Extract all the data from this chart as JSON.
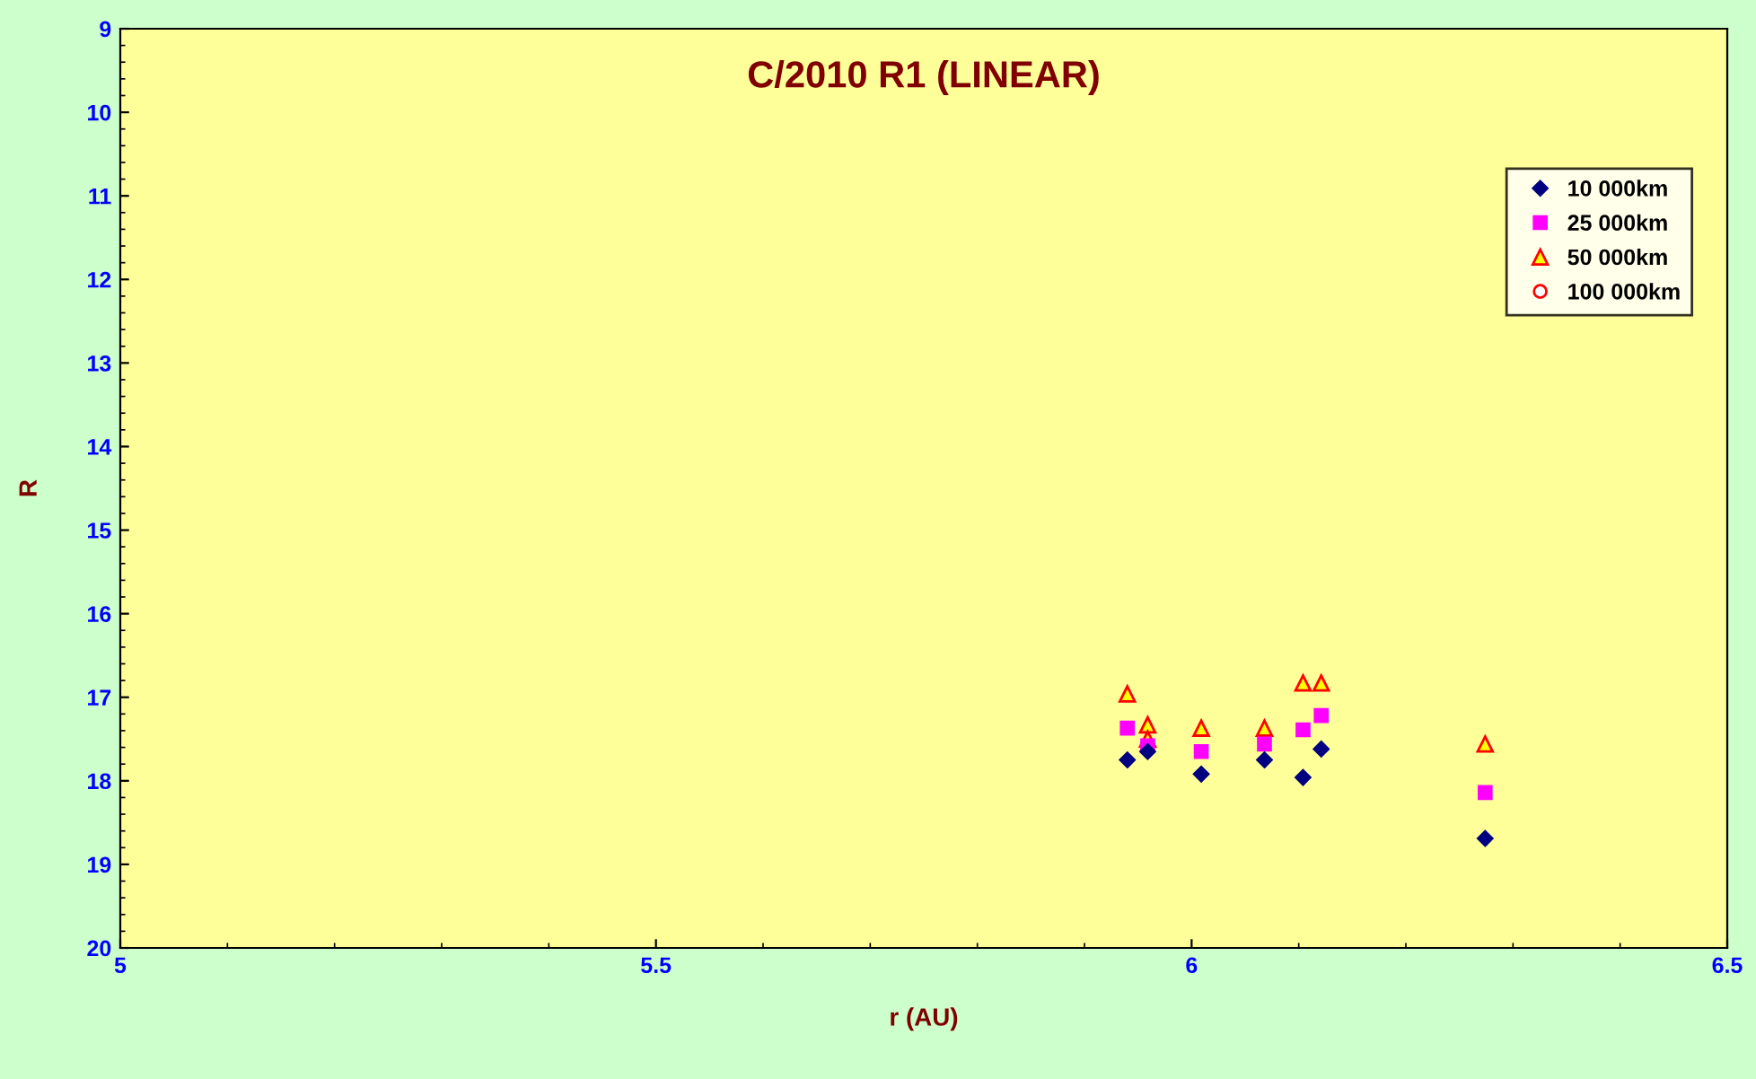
{
  "chart_data": {
    "type": "scatter",
    "title": "C/2010 R1 (LINEAR)",
    "xlabel": "r (AU)",
    "ylabel": "R",
    "xlim": [
      5,
      6.5
    ],
    "xticks": [
      5,
      5.5,
      6,
      6.5
    ],
    "ylim": [
      20,
      9
    ],
    "yticks": [
      9,
      10,
      11,
      12,
      13,
      14,
      15,
      16,
      17,
      18,
      19,
      20
    ],
    "x": [
      5.94,
      5.959,
      5.959,
      6.009,
      6.068,
      6.104,
      6.121,
      6.274
    ],
    "grid": false,
    "legend": "top right",
    "series": [
      {
        "name": "10 000km",
        "color": "#000080",
        "marker": "diamond",
        "values": [
          17.75,
          17.65,
          null,
          17.92,
          17.75,
          17.96,
          17.62,
          18.69
        ]
      },
      {
        "name": "25 000km",
        "color": "#ff00ff",
        "marker": "square",
        "values": [
          17.37,
          null,
          17.58,
          17.65,
          17.56,
          17.39,
          17.22,
          18.14
        ]
      },
      {
        "name": "50 000km",
        "color": "#ff0000",
        "marker": "triangle",
        "values": [
          16.96,
          17.33,
          17.5,
          17.37,
          17.37,
          16.83,
          16.83,
          17.56
        ]
      },
      {
        "name": "100 000km",
        "color": "#ff0000",
        "marker": "circle",
        "values": [
          null,
          null,
          null,
          null,
          null,
          null,
          null,
          null
        ]
      }
    ]
  }
}
